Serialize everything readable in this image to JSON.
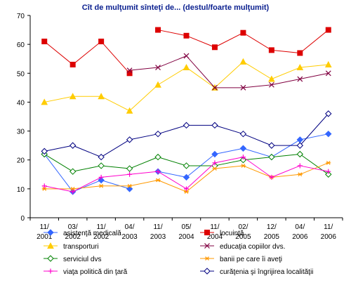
{
  "chart_data": {
    "type": "line",
    "title": "Cît de mulţumit sînteţi de... (destul/foarte mulţumit)",
    "xlabel": "",
    "ylabel": "",
    "ylim": [
      0,
      70
    ],
    "yticks": [
      0,
      10,
      20,
      30,
      40,
      50,
      60,
      70
    ],
    "grid": false,
    "legend_position": "bottom",
    "categories": [
      [
        "11/",
        "2001"
      ],
      [
        "03/",
        "2002"
      ],
      [
        "11/",
        "2002"
      ],
      [
        "04/",
        "2003"
      ],
      [
        "11/",
        "2003"
      ],
      [
        "05/",
        "2004"
      ],
      [
        "11/",
        "2004"
      ],
      [
        "02/",
        "2005"
      ],
      [
        "12/",
        "2005"
      ],
      [
        "04/",
        "2006"
      ],
      [
        "11/",
        "2006"
      ]
    ],
    "series": [
      {
        "name": "asistenţă medicală",
        "color": "#3366ff",
        "marker": "diamond",
        "values": [
          22,
          9,
          13,
          10,
          16,
          14,
          22,
          24,
          21,
          27,
          29
        ],
        "breaks": [
          3,
          4
        ]
      },
      {
        "name": "locuinţă",
        "color": "#dd0000",
        "marker": "square",
        "values": [
          61,
          53,
          61,
          50,
          65,
          63,
          59,
          64,
          58,
          57,
          65
        ],
        "breaks": [
          3,
          4
        ]
      },
      {
        "name": "transporturi",
        "color": "#ffcc00",
        "marker": "triangle",
        "values": [
          40,
          42,
          42,
          37,
          46,
          52,
          45,
          54,
          48,
          52,
          53
        ]
      },
      {
        "name": "educaţia copiilor dvs.",
        "color": "#800040",
        "marker": "x",
        "values": [
          null,
          null,
          null,
          51,
          52,
          56,
          45,
          45,
          46,
          48,
          50
        ]
      },
      {
        "name": "serviciul dvs",
        "color": "#008000",
        "marker": "diamond-open",
        "values": [
          22,
          16,
          18,
          17,
          21,
          18,
          18,
          20,
          21,
          22,
          15
        ]
      },
      {
        "name": "banii pe care îi aveţi",
        "color": "#ff9900",
        "marker": "asterisk",
        "values": [
          10,
          10,
          11,
          11,
          13,
          9,
          17,
          18,
          14,
          15,
          19
        ]
      },
      {
        "name": "viaţa politică din ţară",
        "color": "#ff00cc",
        "marker": "plus",
        "values": [
          11,
          9,
          14,
          15,
          16,
          10,
          19,
          21,
          14,
          18,
          16
        ]
      },
      {
        "name": "curăţenia şi îngrijirea localităţii",
        "color": "#000080",
        "marker": "diamond-open",
        "values": [
          23,
          25,
          21,
          27,
          29,
          32,
          32,
          29,
          25,
          25,
          36
        ]
      }
    ]
  }
}
